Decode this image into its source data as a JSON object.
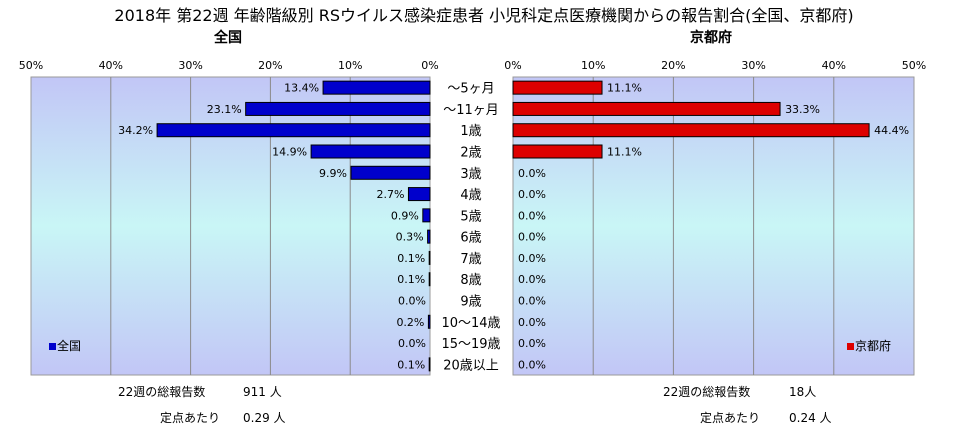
{
  "chart_data": [
    {
      "type": "bar",
      "orientation": "horizontal",
      "direction": "right-to-left",
      "title": "全国",
      "categories": [
        "～5ヶ月",
        "～11ヶ月",
        "1歳",
        "2歳",
        "3歳",
        "4歳",
        "5歳",
        "6歳",
        "7歳",
        "8歳",
        "9歳",
        "10～14歳",
        "15～19歳",
        "20歳以上"
      ],
      "series": [
        {
          "name": "全国",
          "color": "#0000cc",
          "values": [
            13.4,
            23.1,
            34.2,
            14.9,
            9.9,
            2.7,
            0.9,
            0.3,
            0.1,
            0.1,
            0.0,
            0.2,
            0.0,
            0.1
          ],
          "labels": [
            "13.4%",
            "23.1%",
            "34.2%",
            "14.9%",
            "9.9%",
            "2.7%",
            "0.9%",
            "0.3%",
            "0.1%",
            "0.1%",
            "0.0%",
            "0.2%",
            "0.0%",
            "0.1%"
          ]
        }
      ],
      "xlim": [
        0,
        50
      ],
      "ticks": [
        "50%",
        "40%",
        "30%",
        "20%",
        "10%",
        "0%"
      ],
      "grid": true,
      "legend": "bottom-left"
    },
    {
      "type": "bar",
      "orientation": "horizontal",
      "direction": "left-to-right",
      "title": "京都府",
      "categories": [
        "～5ヶ月",
        "～11ヶ月",
        "1歳",
        "2歳",
        "3歳",
        "4歳",
        "5歳",
        "6歳",
        "7歳",
        "8歳",
        "9歳",
        "10～14歳",
        "15～19歳",
        "20歳以上"
      ],
      "series": [
        {
          "name": "京都府",
          "color": "#dd0000",
          "values": [
            11.1,
            33.3,
            44.4,
            11.1,
            0,
            0,
            0,
            0,
            0,
            0,
            0,
            0,
            0,
            0
          ],
          "labels": [
            "11.1%",
            "33.3%",
            "44.4%",
            "11.1%",
            "0.0%",
            "0.0%",
            "0.0%",
            "0.0%",
            "0.0%",
            "0.0%",
            "0.0%",
            "0.0%",
            "0.0%",
            "0.0%"
          ]
        }
      ],
      "xlim": [
        0,
        50
      ],
      "ticks": [
        "0%",
        "10%",
        "20%",
        "30%",
        "40%",
        "50%"
      ],
      "grid": true,
      "legend": "bottom-right"
    }
  ],
  "page": {
    "title": "2018年 第22週 年齢階級別 RSウイルス感染症患者 小児科定点医療機関からの報告割合(全国、京都府)",
    "national": {
      "heading": "全国",
      "legend": "全国",
      "total_label": "22週の総報告数",
      "total_value": "911 人",
      "per_label": "定点あたり",
      "per_value": "0.29 人"
    },
    "kyoto": {
      "heading": "京都府",
      "legend": "京都府",
      "total_label": "22週の総報告数",
      "total_value": "18人",
      "per_label": "定点あたり",
      "per_value": "0.24 人"
    }
  }
}
